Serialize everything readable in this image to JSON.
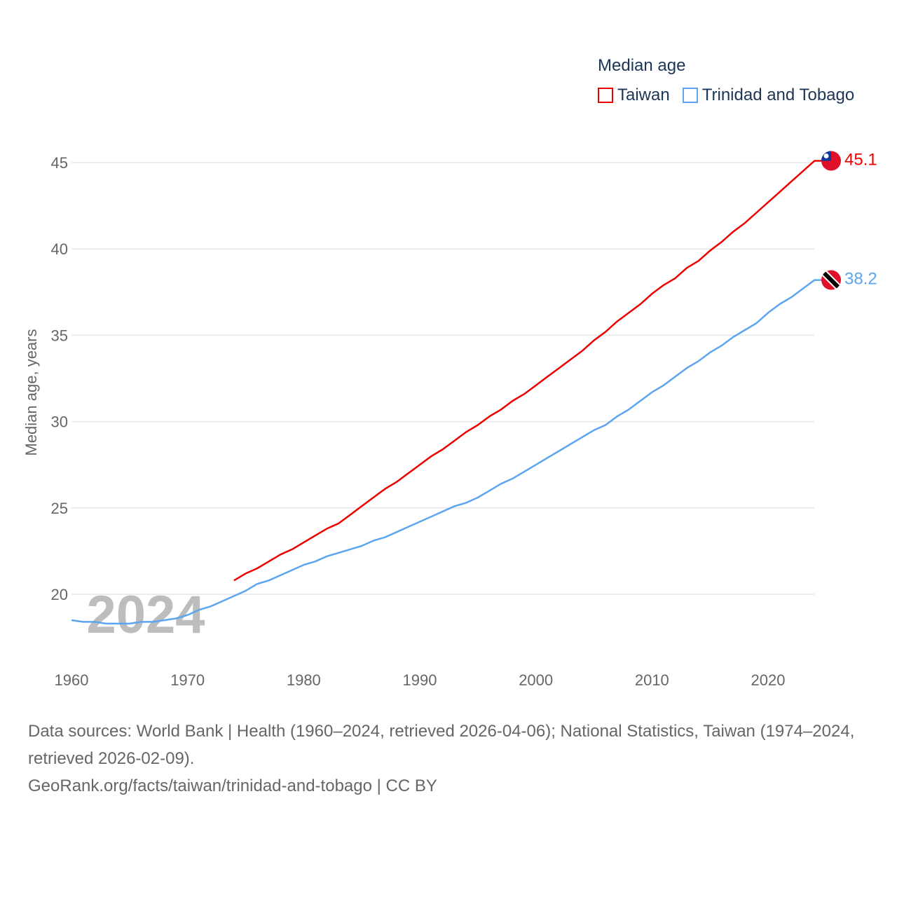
{
  "chart_data": {
    "type": "line",
    "title": "Median age",
    "ylabel": "Median age, years",
    "xlabel": "",
    "xlim": [
      1960,
      2024
    ],
    "ylim": [
      17,
      46.5
    ],
    "x_ticks": [
      "1960",
      "1970",
      "1980",
      "1990",
      "2000",
      "2010",
      "2020"
    ],
    "y_ticks": [
      "20",
      "25",
      "30",
      "35",
      "40",
      "45"
    ],
    "grid": true,
    "legend_placement": "top-right",
    "year_watermark": "2024",
    "series": [
      {
        "name": "Taiwan",
        "color": "#ee0000",
        "start_year": 1974,
        "end_label": "45.1",
        "values": [
          20.8,
          21.2,
          21.5,
          21.9,
          22.3,
          22.6,
          23.0,
          23.4,
          23.8,
          24.1,
          24.6,
          25.1,
          25.6,
          26.1,
          26.5,
          27.0,
          27.5,
          28.0,
          28.4,
          28.9,
          29.4,
          29.8,
          30.3,
          30.7,
          31.2,
          31.6,
          32.1,
          32.6,
          33.1,
          33.6,
          34.1,
          34.7,
          35.2,
          35.8,
          36.3,
          36.8,
          37.4,
          37.9,
          38.3,
          38.9,
          39.3,
          39.9,
          40.4,
          41.0,
          41.5,
          42.1,
          42.7,
          43.3,
          43.9,
          44.5,
          45.1
        ]
      },
      {
        "name": "Trinidad and Tobago",
        "color": "#5da5f0",
        "start_year": 1960,
        "end_label": "38.2",
        "values": [
          18.5,
          18.4,
          18.4,
          18.3,
          18.3,
          18.3,
          18.4,
          18.4,
          18.5,
          18.6,
          18.8,
          19.1,
          19.3,
          19.6,
          19.9,
          20.2,
          20.6,
          20.8,
          21.1,
          21.4,
          21.7,
          21.9,
          22.2,
          22.4,
          22.6,
          22.8,
          23.1,
          23.3,
          23.6,
          23.9,
          24.2,
          24.5,
          24.8,
          25.1,
          25.3,
          25.6,
          26.0,
          26.4,
          26.7,
          27.1,
          27.5,
          27.9,
          28.3,
          28.7,
          29.1,
          29.5,
          29.8,
          30.3,
          30.7,
          31.2,
          31.7,
          32.1,
          32.6,
          33.1,
          33.5,
          34.0,
          34.4,
          34.9,
          35.3,
          35.7,
          36.3,
          36.8,
          37.2,
          37.7,
          38.2
        ]
      }
    ]
  },
  "source": {
    "line1": "Data sources: World Bank | Health (1960–2024, retrieved 2026-04-06); National Statistics, Taiwan (1974–2024, retrieved 2026-02-09).",
    "line2": "GeoRank.org/facts/taiwan/trinidad-and-tobago | CC BY"
  }
}
